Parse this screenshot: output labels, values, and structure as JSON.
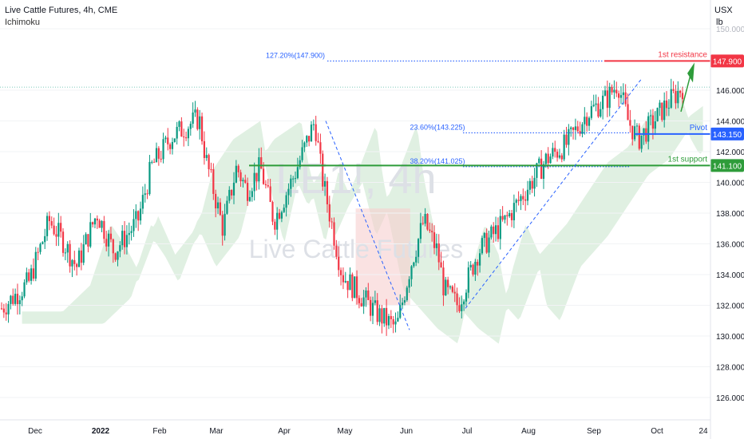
{
  "header": {
    "title": "Live Cattle Futures, 4h, CME",
    "indicator": "Ichimoku",
    "unit_line1": "USX",
    "unit_line2": "lb"
  },
  "watermark": {
    "symbol": "LE1!, 4h",
    "name": "Live Cattle Futures"
  },
  "colors": {
    "up": "#089981",
    "down": "#f23645",
    "resistance": "#f23645",
    "pivot": "#2962ff",
    "support": "#2e9c3a",
    "fib": "#2962ff",
    "cloud_bull": "#cfe8d3",
    "cloud_bear": "#f7cfcf"
  },
  "chart_data": {
    "type": "candlestick",
    "x_tick_labels": [
      "Dec",
      "2022",
      "Feb",
      "Mar",
      "Apr",
      "May",
      "Jun",
      "Jul",
      "Aug",
      "Sep",
      "Oct",
      "24"
    ],
    "y_tick_labels": [
      "126.000",
      "128.000",
      "130.000",
      "132.000",
      "134.000",
      "136.000",
      "138.000",
      "140.000",
      "142.000",
      "144.000",
      "146.000",
      "150.000"
    ],
    "ylim": [
      125,
      150.5
    ],
    "levels": [
      {
        "name": "1st resistance",
        "value": 147.9,
        "price_label": "147.900",
        "color": "#f23645"
      },
      {
        "name": "Pivot",
        "value": 143.15,
        "price_label": "143.150",
        "color": "#2962ff"
      },
      {
        "name": "1st support",
        "value": 141.1,
        "price_label": "141.100",
        "color": "#2e9c3a"
      }
    ],
    "fib_labels": [
      {
        "label": "127.20%(147.900)",
        "value": 147.9
      },
      {
        "label": "23.60%(143.225)",
        "value": 143.225
      },
      {
        "label": "38.20%(141.025)",
        "value": 141.025
      }
    ],
    "price_path": [
      [
        0,
        131.8
      ],
      [
        0.04,
        133.5
      ],
      [
        0.07,
        137.5
      ],
      [
        0.09,
        136.2
      ],
      [
        0.11,
        134.5
      ],
      [
        0.14,
        138.0
      ],
      [
        0.165,
        135.5
      ],
      [
        0.2,
        137.5
      ],
      [
        0.22,
        141.0
      ],
      [
        0.25,
        143.0
      ],
      [
        0.29,
        144.2
      ],
      [
        0.3,
        141.5
      ],
      [
        0.325,
        137.0
      ],
      [
        0.345,
        141.0
      ],
      [
        0.36,
        139.5
      ],
      [
        0.38,
        141.0
      ],
      [
        0.4,
        137.5
      ],
      [
        0.43,
        140.5
      ],
      [
        0.46,
        144.0
      ],
      [
        0.47,
        140.5
      ],
      [
        0.5,
        134.0
      ],
      [
        0.52,
        133.0
      ],
      [
        0.55,
        131.5
      ],
      [
        0.58,
        130.5
      ],
      [
        0.6,
        134.5
      ],
      [
        0.62,
        137.5
      ],
      [
        0.64,
        135.5
      ],
      [
        0.65,
        133.0
      ],
      [
        0.67,
        132.0
      ],
      [
        0.7,
        135.5
      ],
      [
        0.74,
        137.5
      ],
      [
        0.77,
        139.5
      ],
      [
        0.8,
        141.5
      ],
      [
        0.83,
        142.5
      ],
      [
        0.86,
        144.5
      ],
      [
        0.89,
        145.5
      ],
      [
        0.905,
        146.5
      ],
      [
        0.92,
        144.0
      ],
      [
        0.935,
        142.8
      ],
      [
        0.955,
        143.8
      ],
      [
        0.975,
        145.0
      ],
      [
        1.0,
        146.2
      ]
    ]
  }
}
